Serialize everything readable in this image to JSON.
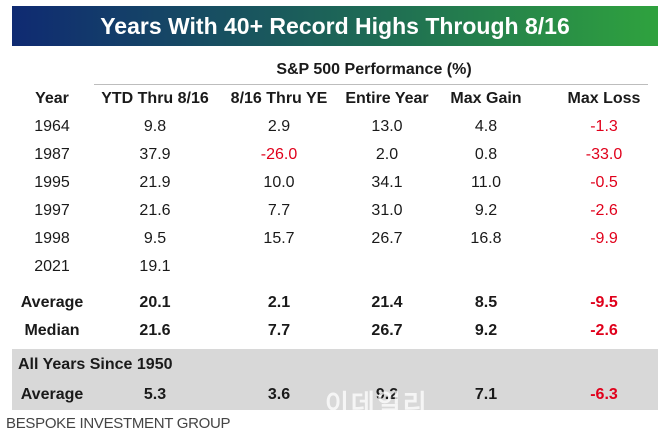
{
  "title": "Years With 40+ Record Highs Through 8/16",
  "group_header": "S&P 500 Performance (%)",
  "columns": [
    "Year",
    "YTD Thru 8/16",
    "8/16 Thru YE",
    "Entire Year",
    "Max Gain",
    "Max Loss"
  ],
  "rows": [
    {
      "year": "1964",
      "values": [
        "9.8",
        "2.9",
        "13.0",
        "4.8",
        "-1.3"
      ]
    },
    {
      "year": "1987",
      "values": [
        "37.9",
        "-26.0",
        "2.0",
        "0.8",
        "-33.0"
      ]
    },
    {
      "year": "1995",
      "values": [
        "21.9",
        "10.0",
        "34.1",
        "11.0",
        "-0.5"
      ]
    },
    {
      "year": "1997",
      "values": [
        "21.6",
        "7.7",
        "31.0",
        "9.2",
        "-2.6"
      ]
    },
    {
      "year": "1998",
      "values": [
        "9.5",
        "15.7",
        "26.7",
        "16.8",
        "-9.9"
      ]
    },
    {
      "year": "2021",
      "values": [
        "19.1",
        "",
        "",
        "",
        ""
      ]
    }
  ],
  "summary": [
    {
      "label": "Average",
      "values": [
        "20.1",
        "2.1",
        "21.4",
        "8.5",
        "-9.5"
      ]
    },
    {
      "label": "Median",
      "values": [
        "21.6",
        "7.7",
        "26.7",
        "9.2",
        "-2.6"
      ]
    }
  ],
  "since_1950": {
    "label": "All Years Since 1950",
    "row": {
      "label": "Average",
      "values": [
        "5.3",
        "3.6",
        "9.2",
        "7.1",
        "-6.3"
      ]
    }
  },
  "watermark": "이데일리",
  "source": "BESPOKE INVESTMENT GROUP",
  "colors": {
    "negative": "#e0001b",
    "banner_start": "#0f2a72",
    "banner_end": "#2fa23e",
    "band": "#d8d8d8"
  }
}
